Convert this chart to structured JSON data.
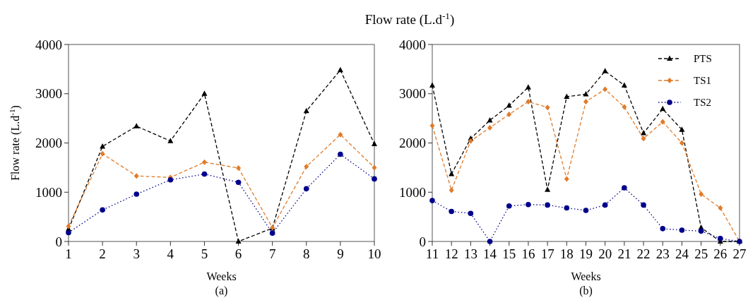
{
  "chart_data": [
    {
      "type": "line",
      "title": "Flow rate (L.d$^{-1}$)",
      "xlabel": "Weeks",
      "ylabel": "Flow rate (L.d$^{-1}$)",
      "annotations": [
        "(a)"
      ],
      "x": [
        1,
        2,
        3,
        4,
        5,
        6,
        7,
        8,
        9,
        10
      ],
      "xlim": [
        1,
        10
      ],
      "xticks": [
        1,
        2,
        3,
        4,
        5,
        6,
        7,
        8,
        9,
        10
      ],
      "ylim": [
        0,
        4000
      ],
      "yticks": [
        0,
        1000,
        2000,
        3000,
        4000
      ],
      "grid": false,
      "legend": false,
      "series": [
        {
          "color": "#000000",
          "marker": "triangle",
          "line_style": "dashed",
          "values": [
            250,
            1930,
            2340,
            2040,
            3000,
            0,
            270,
            2650,
            3480,
            1980
          ]
        },
        {
          "color": "#e07b2a",
          "marker": "diamond",
          "line_style": "dashed",
          "values": [
            310,
            1780,
            1330,
            1300,
            1610,
            1490,
            280,
            1520,
            2170,
            1500
          ]
        },
        {
          "color": "#00008b",
          "marker": "circle",
          "line_style": "dotted",
          "values": [
            180,
            640,
            960,
            1250,
            1370,
            1200,
            170,
            1070,
            1770,
            1270
          ]
        }
      ]
    },
    {
      "type": "line",
      "xlabel": "Weeks",
      "annotations": [
        "(b)"
      ],
      "x": [
        11,
        12,
        13,
        14,
        15,
        16,
        17,
        18,
        19,
        20,
        21,
        22,
        23,
        24,
        25,
        26,
        27
      ],
      "xlim": [
        11,
        27
      ],
      "xticks": [
        11,
        12,
        13,
        14,
        15,
        16,
        17,
        18,
        19,
        20,
        21,
        22,
        23,
        24,
        25,
        26,
        27
      ],
      "ylim": [
        0,
        4000
      ],
      "yticks": [
        0,
        1000,
        2000,
        3000,
        4000
      ],
      "grid": false,
      "legend": "top right",
      "series": [
        {
          "name": "PTS",
          "color": "#000000",
          "marker": "triangle",
          "line_style": "dashed",
          "values": [
            3170,
            1370,
            2090,
            2460,
            2760,
            3130,
            1050,
            2940,
            2990,
            3460,
            3170,
            2200,
            2690,
            2270,
            280,
            0,
            0
          ]
        },
        {
          "name": "TS1",
          "color": "#e07b2a",
          "marker": "diamond",
          "line_style": "dashed",
          "values": [
            2350,
            1040,
            2040,
            2310,
            2580,
            2840,
            2720,
            1270,
            2840,
            3090,
            2730,
            2090,
            2430,
            2000,
            960,
            680,
            0
          ]
        },
        {
          "name": "TS2",
          "color": "#00008b",
          "marker": "circle",
          "line_style": "dotted",
          "values": [
            830,
            610,
            570,
            0,
            720,
            750,
            740,
            680,
            630,
            740,
            1090,
            740,
            260,
            230,
            210,
            60,
            0
          ]
        }
      ]
    }
  ]
}
